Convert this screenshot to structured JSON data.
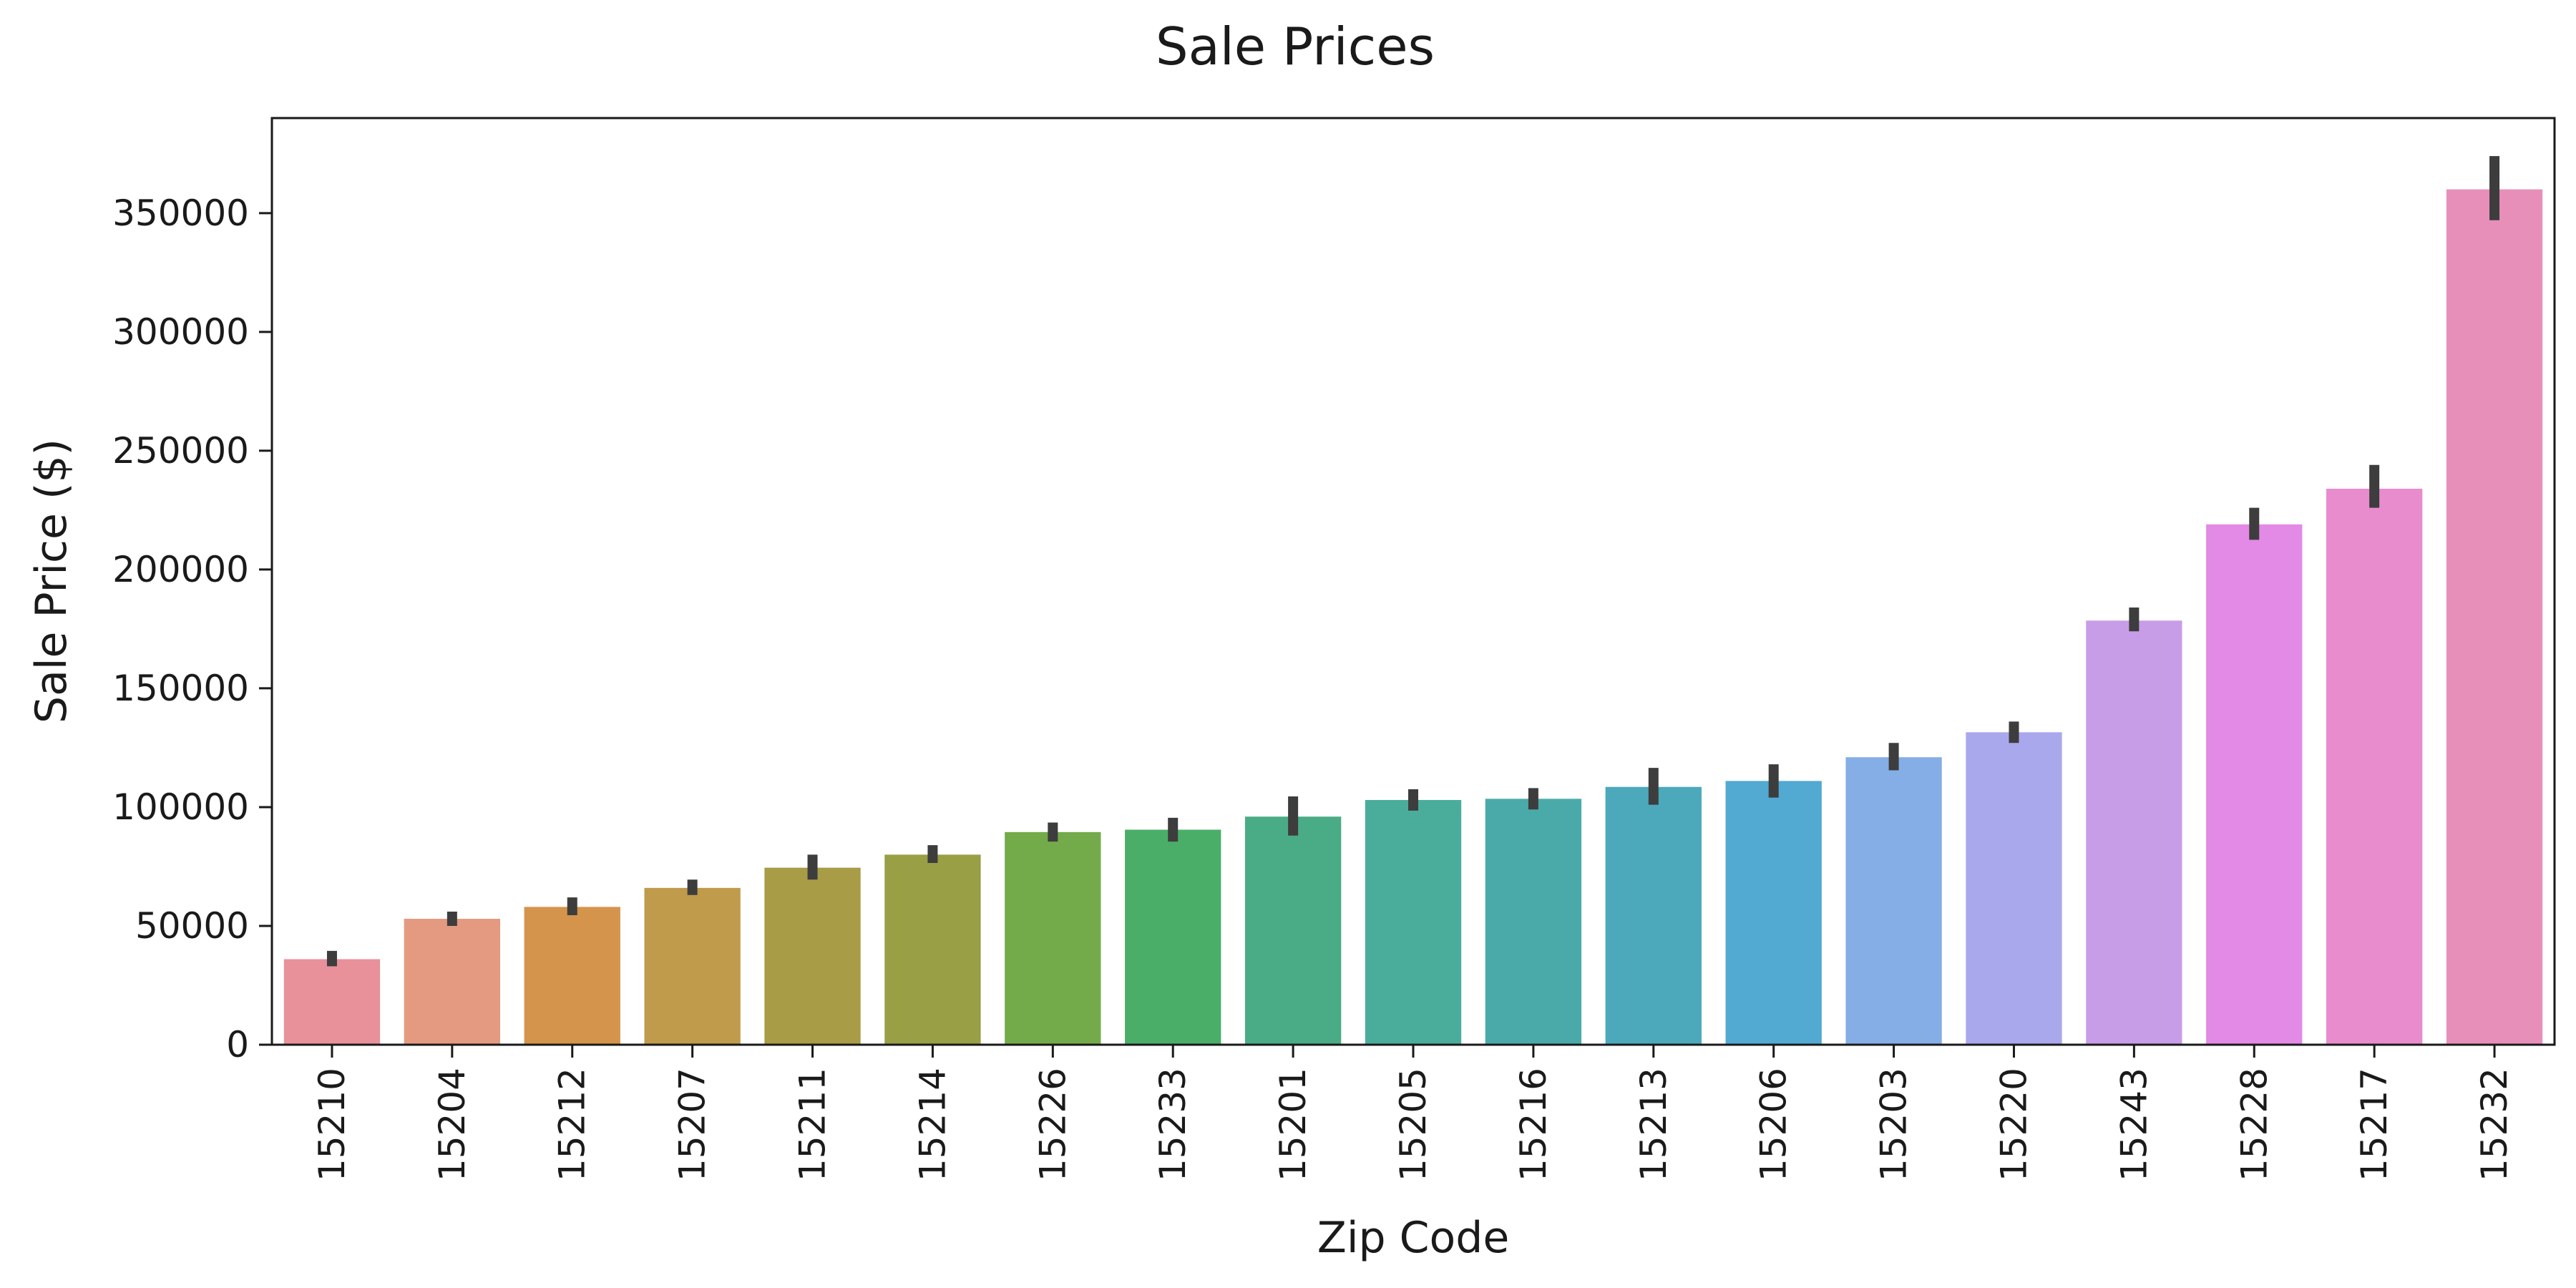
{
  "chart_data": {
    "type": "bar",
    "title": "Sale Prices",
    "xlabel": "Zip Code",
    "ylabel": "Sale Price ($)",
    "ylim": [
      0,
      390000
    ],
    "yticks": [
      0,
      50000,
      100000,
      150000,
      200000,
      250000,
      300000,
      350000
    ],
    "grid": false,
    "categories": [
      "15210",
      "15204",
      "15212",
      "15207",
      "15211",
      "15214",
      "15226",
      "15233",
      "15201",
      "15205",
      "15216",
      "15213",
      "15206",
      "15203",
      "15220",
      "15243",
      "15228",
      "15217",
      "15232"
    ],
    "values": [
      36000,
      53000,
      58000,
      66000,
      74500,
      80000,
      89500,
      90500,
      96000,
      103000,
      103500,
      108500,
      111000,
      121000,
      131500,
      178500,
      219000,
      234000,
      360000
    ],
    "error_low": [
      33000,
      50000,
      54500,
      63000,
      69500,
      76500,
      85500,
      85500,
      88000,
      98500,
      99000,
      101000,
      104000,
      115500,
      127000,
      174000,
      212500,
      226000,
      347000
    ],
    "error_high": [
      39500,
      56000,
      62000,
      69500,
      80000,
      84000,
      93500,
      95500,
      104500,
      107500,
      108000,
      116500,
      118000,
      127000,
      136000,
      184000,
      226000,
      244000,
      374000
    ],
    "colors": [
      "#e8919b",
      "#e49a80",
      "#d4944b",
      "#bf9b4b",
      "#a89c47",
      "#989f45",
      "#74ab4a",
      "#4aae68",
      "#4aac86",
      "#4aad9c",
      "#4aaaa9",
      "#4ba9bb",
      "#52a9d2",
      "#85aee6",
      "#aaa8ec",
      "#c89de8",
      "#e389e6",
      "#e88cce",
      "#e88fb9"
    ],
    "error_color": "#3d3d3d"
  }
}
